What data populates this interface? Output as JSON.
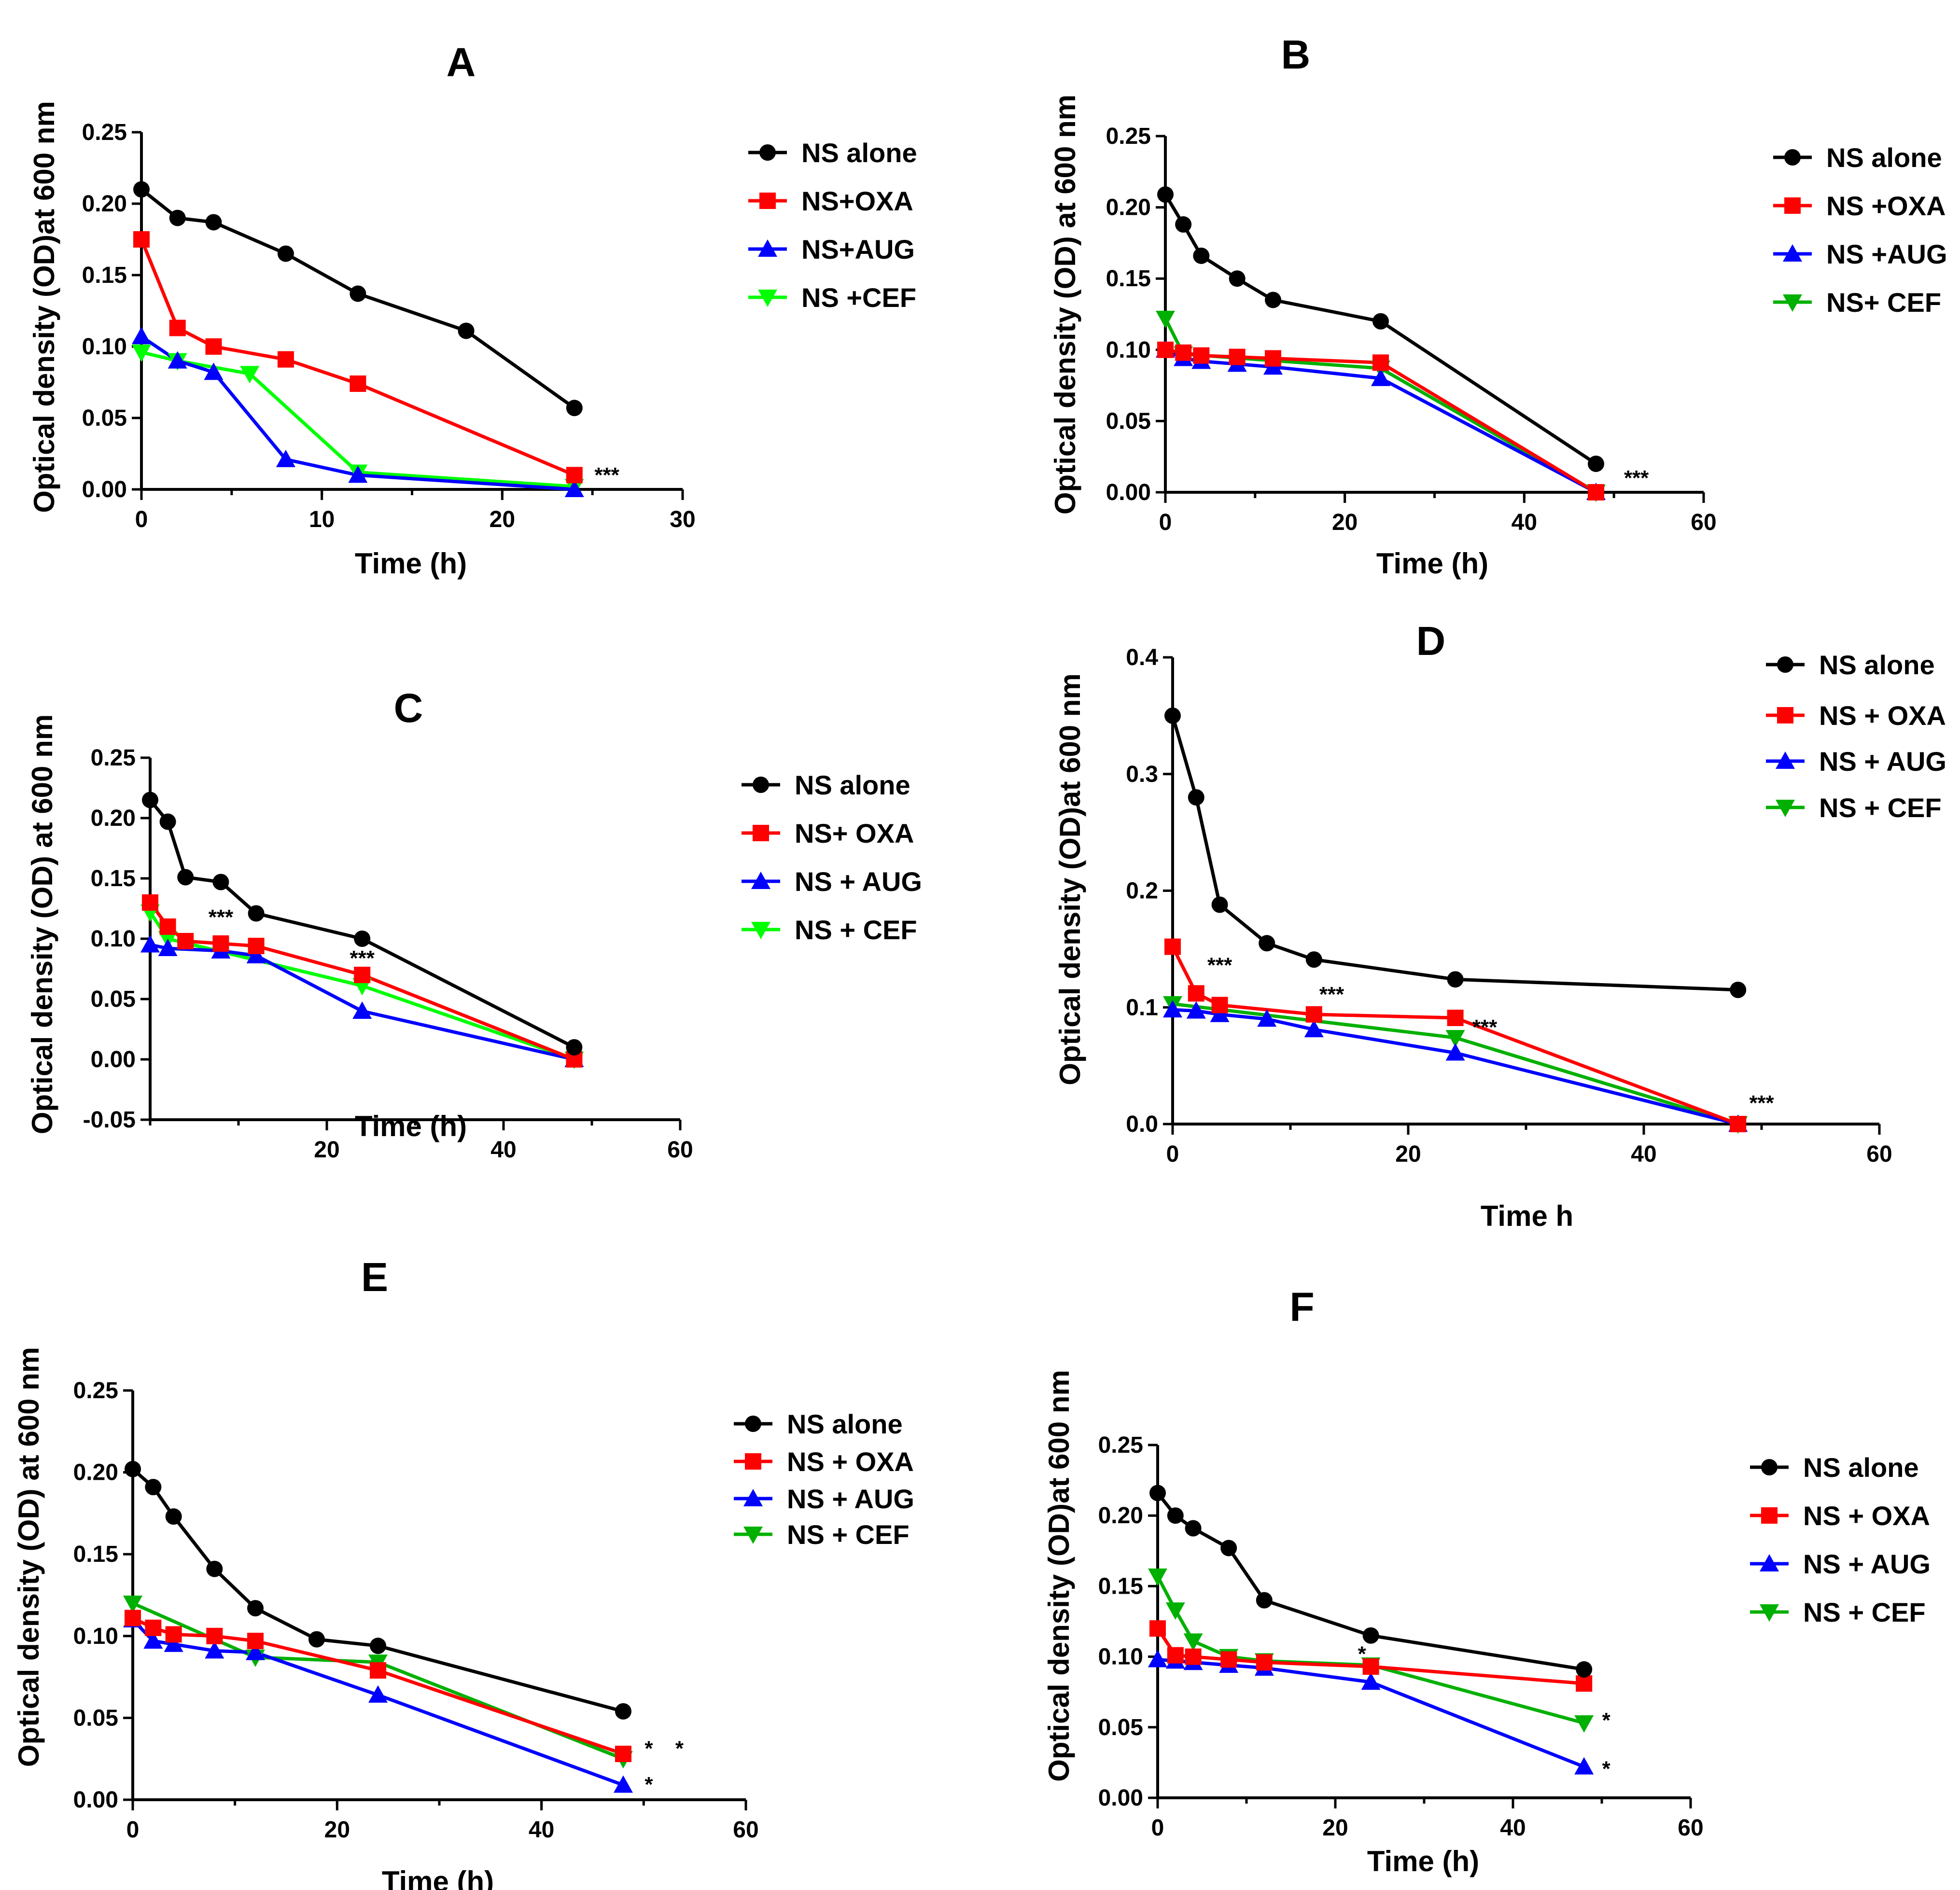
{
  "chart_data": [
    {
      "panel": "A",
      "type": "line",
      "title": "A",
      "xlabel": "Time (h)",
      "ylabel": "Optical density (OD)at 600 nm",
      "xlim": [
        0,
        30
      ],
      "ylim": [
        0,
        0.25
      ],
      "xticks": [
        0,
        10,
        20,
        30
      ],
      "yticks": [
        0.0,
        0.05,
        0.1,
        0.15,
        0.2,
        0.25
      ],
      "ytick_labels": [
        "0.00",
        "0.05",
        "0.10",
        "0.15",
        "0.20",
        "0.25"
      ],
      "series": [
        {
          "name": "NS alone",
          "color": "#000000",
          "marker": "circle",
          "x": [
            0,
            2,
            4,
            8,
            12,
            18,
            24
          ],
          "y": [
            0.21,
            0.19,
            0.187,
            0.165,
            0.137,
            0.111,
            0.057
          ]
        },
        {
          "name": "NS+OXA",
          "color": "#ff0000",
          "marker": "square",
          "x": [
            0,
            2,
            4,
            8,
            12,
            24
          ],
          "y": [
            0.175,
            0.113,
            0.1,
            0.091,
            0.074,
            0.01
          ]
        },
        {
          "name": "NS+AUG",
          "color": "#0000ff",
          "marker": "triangle-up",
          "x": [
            0,
            2,
            4,
            8,
            12,
            24
          ],
          "y": [
            0.107,
            0.09,
            0.082,
            0.021,
            0.01,
            0.0
          ]
        },
        {
          "name": "NS +CEF",
          "color": "#00ff00",
          "marker": "triangle-down",
          "x": [
            0,
            2,
            6,
            12,
            24
          ],
          "y": [
            0.096,
            0.09,
            0.081,
            0.012,
            0.002
          ]
        }
      ],
      "annotations": [
        {
          "text": "***",
          "x": 25.8,
          "y": 0.005
        }
      ]
    },
    {
      "panel": "B",
      "type": "line",
      "title": "B",
      "xlabel": "Time (h)",
      "ylabel": "Optical density (OD) at 600 nm",
      "xlim": [
        0,
        60
      ],
      "ylim": [
        0,
        0.25
      ],
      "xticks": [
        0,
        20,
        40,
        60
      ],
      "yticks": [
        0.0,
        0.05,
        0.1,
        0.15,
        0.2,
        0.25
      ],
      "ytick_labels": [
        "0.00",
        "0.05",
        "0.10",
        "0.15",
        "0.20",
        "0.25"
      ],
      "series": [
        {
          "name": "NS alone",
          "color": "#000000",
          "marker": "circle",
          "x": [
            0,
            2,
            4,
            8,
            12,
            24,
            48
          ],
          "y": [
            0.209,
            0.188,
            0.166,
            0.15,
            0.135,
            0.12,
            0.02
          ]
        },
        {
          "name": "NS +OXA",
          "color": "#ff0000",
          "marker": "square",
          "x": [
            0,
            2,
            4,
            8,
            12,
            24,
            48
          ],
          "y": [
            0.1,
            0.098,
            0.096,
            0.095,
            0.094,
            0.091,
            0.0
          ]
        },
        {
          "name": "NS +AUG",
          "color": "#0000ff",
          "marker": "triangle-up",
          "x": [
            0,
            2,
            4,
            8,
            12,
            24,
            48
          ],
          "y": [
            0.1,
            0.094,
            0.092,
            0.09,
            0.088,
            0.08,
            0.0
          ]
        },
        {
          "name": "NS+ CEF",
          "color": "#00b000",
          "marker": "triangle-down",
          "x": [
            0,
            2,
            24,
            48
          ],
          "y": [
            0.122,
            0.097,
            0.087,
            0.0
          ]
        }
      ],
      "annotations": [
        {
          "text": "***",
          "x": 52.5,
          "y": 0.005
        }
      ]
    },
    {
      "panel": "C",
      "type": "line",
      "title": "C",
      "xlabel": "Time (h)",
      "ylabel": "Optical density (OD) at 600 nm",
      "xlim": [
        0,
        60
      ],
      "ylim": [
        -0.05,
        0.25
      ],
      "xticks": [
        20,
        40,
        60
      ],
      "yticks": [
        -0.05,
        0.0,
        0.05,
        0.1,
        0.15,
        0.2,
        0.25
      ],
      "ytick_labels": [
        "-0.05",
        "0.00",
        "0.05",
        "0.10",
        "0.15",
        "0.20",
        "0.25"
      ],
      "series": [
        {
          "name": "NS alone",
          "color": "#000000",
          "marker": "circle",
          "x": [
            0,
            2,
            4,
            8,
            12,
            24,
            48
          ],
          "y": [
            0.215,
            0.197,
            0.151,
            0.147,
            0.121,
            0.1,
            0.01
          ]
        },
        {
          "name": "NS+ OXA",
          "color": "#ff0000",
          "marker": "square",
          "x": [
            0,
            2,
            4,
            8,
            12,
            24,
            48
          ],
          "y": [
            0.13,
            0.11,
            0.098,
            0.096,
            0.094,
            0.07,
            0.0
          ]
        },
        {
          "name": "NS + AUG",
          "color": "#0000ff",
          "marker": "triangle-up",
          "x": [
            0,
            2,
            8,
            12,
            24,
            48
          ],
          "y": [
            0.095,
            0.092,
            0.09,
            0.086,
            0.04,
            0.0
          ]
        },
        {
          "name": "NS + CEF",
          "color": "#00ff00",
          "marker": "triangle-down",
          "x": [
            0,
            2,
            24,
            48
          ],
          "y": [
            0.122,
            0.1,
            0.061,
            0.0
          ]
        }
      ],
      "annotations": [
        {
          "text": "***",
          "x": 8,
          "y": 0.112
        },
        {
          "text": "***",
          "x": 24,
          "y": 0.078
        }
      ]
    },
    {
      "panel": "D",
      "type": "line",
      "title": "D",
      "xlabel": "Time h",
      "ylabel": "Optical density (OD)at 600 nm",
      "xlim": [
        0,
        60
      ],
      "ylim": [
        0,
        0.4
      ],
      "xticks": [
        0,
        20,
        40,
        60
      ],
      "yticks": [
        0.0,
        0.1,
        0.2,
        0.3,
        0.4
      ],
      "ytick_labels": [
        "0.0",
        "0.1",
        "0.2",
        "0.3",
        "0.4"
      ],
      "series": [
        {
          "name": "NS alone",
          "color": "#000000",
          "marker": "circle",
          "x": [
            0,
            2,
            4,
            8,
            12,
            24,
            48
          ],
          "y": [
            0.35,
            0.28,
            0.188,
            0.155,
            0.141,
            0.124,
            0.115
          ]
        },
        {
          "name": "NS + OXA",
          "color": "#ff0000",
          "marker": "square",
          "x": [
            0,
            2,
            4,
            12,
            24,
            48
          ],
          "y": [
            0.152,
            0.112,
            0.102,
            0.094,
            0.091,
            0.0
          ]
        },
        {
          "name": "NS + AUG",
          "color": "#0000ff",
          "marker": "triangle-up",
          "x": [
            0,
            2,
            4,
            8,
            12,
            24,
            48
          ],
          "y": [
            0.098,
            0.097,
            0.094,
            0.09,
            0.081,
            0.061,
            0.0
          ]
        },
        {
          "name": "NS + CEF",
          "color": "#00b000",
          "marker": "triangle-down",
          "x": [
            0,
            24,
            48
          ],
          "y": [
            0.103,
            0.074,
            0.0
          ]
        }
      ],
      "annotations": [
        {
          "text": "***",
          "x": 4,
          "y": 0.13
        },
        {
          "text": "***",
          "x": 13.5,
          "y": 0.105
        },
        {
          "text": "***",
          "x": 26.5,
          "y": 0.077
        },
        {
          "text": "***",
          "x": 50,
          "y": 0.012
        }
      ]
    },
    {
      "panel": "E",
      "type": "line",
      "title": "E",
      "xlabel": "Time (h)",
      "ylabel": "Optical density (OD) at 600 nm",
      "xlim": [
        0,
        60
      ],
      "ylim": [
        0,
        0.25
      ],
      "xticks": [
        0,
        20,
        40,
        60
      ],
      "yticks": [
        0.0,
        0.05,
        0.1,
        0.15,
        0.2,
        0.25
      ],
      "ytick_labels": [
        "0.00",
        "0.05",
        "0.10",
        "0.15",
        "0.20",
        "0.25"
      ],
      "series": [
        {
          "name": "NS alone",
          "color": "#000000",
          "marker": "circle",
          "x": [
            0,
            2,
            4,
            8,
            12,
            18,
            24,
            48
          ],
          "y": [
            0.202,
            0.191,
            0.173,
            0.141,
            0.117,
            0.098,
            0.094,
            0.054
          ]
        },
        {
          "name": "NS + OXA",
          "color": "#ff0000",
          "marker": "square",
          "x": [
            0,
            2,
            4,
            8,
            12,
            24,
            48
          ],
          "y": [
            0.111,
            0.105,
            0.101,
            0.1,
            0.097,
            0.079,
            0.028
          ]
        },
        {
          "name": "NS + AUG",
          "color": "#0000ff",
          "marker": "triangle-up",
          "x": [
            0,
            2,
            4,
            8,
            12,
            24,
            48
          ],
          "y": [
            0.11,
            0.097,
            0.095,
            0.091,
            0.09,
            0.064,
            0.009
          ]
        },
        {
          "name": "NS + CEF",
          "color": "#00b000",
          "marker": "triangle-down",
          "x": [
            0,
            12,
            24,
            48
          ],
          "y": [
            0.12,
            0.087,
            0.084,
            0.025
          ]
        }
      ],
      "annotations": [
        {
          "text": "*",
          "x": 50.5,
          "y": 0.027
        },
        {
          "text": "*",
          "x": 53.5,
          "y": 0.027
        },
        {
          "text": "*",
          "x": 50.5,
          "y": 0.005
        }
      ]
    },
    {
      "panel": "F",
      "type": "line",
      "title": "F",
      "xlabel": "Time (h)",
      "ylabel": "Optical density (OD)at 600 nm",
      "xlim": [
        0,
        60
      ],
      "ylim": [
        0,
        0.25
      ],
      "xticks": [
        0,
        20,
        40,
        60
      ],
      "yticks": [
        0.0,
        0.05,
        0.1,
        0.15,
        0.2,
        0.25
      ],
      "ytick_labels": [
        "0.00",
        "0.05",
        "0.10",
        "0.15",
        "0.20",
        "0.25"
      ],
      "series": [
        {
          "name": "NS alone",
          "color": "#000000",
          "marker": "circle",
          "x": [
            0,
            2,
            4,
            8,
            12,
            24,
            48
          ],
          "y": [
            0.216,
            0.2,
            0.191,
            0.177,
            0.14,
            0.115,
            0.091
          ]
        },
        {
          "name": "NS + OXA",
          "color": "#ff0000",
          "marker": "square",
          "x": [
            0,
            2,
            4,
            8,
            12,
            24,
            48
          ],
          "y": [
            0.12,
            0.101,
            0.1,
            0.098,
            0.096,
            0.093,
            0.081
          ]
        },
        {
          "name": "NS + AUG",
          "color": "#0000ff",
          "marker": "triangle-up",
          "x": [
            0,
            2,
            4,
            8,
            12,
            24,
            48
          ],
          "y": [
            0.098,
            0.097,
            0.096,
            0.094,
            0.092,
            0.082,
            0.022
          ]
        },
        {
          "name": "NS + CEF",
          "color": "#00b000",
          "marker": "triangle-down",
          "x": [
            0,
            2,
            4,
            8,
            12,
            24,
            48
          ],
          "y": [
            0.157,
            0.133,
            0.111,
            0.1,
            0.097,
            0.094,
            0.053
          ]
        }
      ],
      "annotations": [
        {
          "text": "*",
          "x": 23,
          "y": 0.097
        },
        {
          "text": "*",
          "x": 50.5,
          "y": 0.05
        },
        {
          "text": "*",
          "x": 50.5,
          "y": 0.0155
        }
      ]
    }
  ]
}
